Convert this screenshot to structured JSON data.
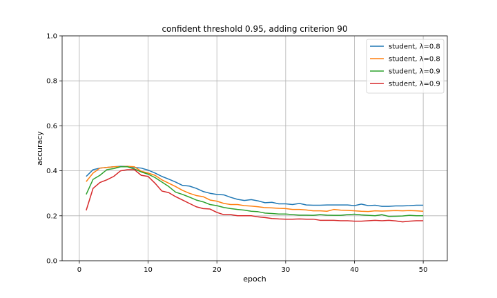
{
  "chart_data": {
    "type": "line",
    "title": "confident threshold 0.95, adding criterion 90",
    "xlabel": "epoch",
    "ylabel": "accuracy",
    "xlim": [
      -2.5,
      53.5
    ],
    "ylim": [
      0.0,
      1.0
    ],
    "x_ticks": [
      0,
      10,
      20,
      30,
      40,
      50
    ],
    "y_ticks": [
      0.0,
      0.2,
      0.4,
      0.6,
      0.8,
      1.0
    ],
    "x_tick_labels": [
      "0",
      "10",
      "20",
      "30",
      "40",
      "50"
    ],
    "y_tick_labels": [
      "0.0",
      "0.2",
      "0.4",
      "0.6",
      "0.8",
      "1.0"
    ],
    "grid": true,
    "legend_position": "top-right",
    "x": [
      1,
      2,
      3,
      4,
      5,
      6,
      7,
      8,
      9,
      10,
      11,
      12,
      13,
      14,
      15,
      16,
      17,
      18,
      19,
      20,
      21,
      22,
      23,
      24,
      25,
      26,
      27,
      28,
      29,
      30,
      31,
      32,
      33,
      34,
      35,
      36,
      37,
      38,
      39,
      40,
      41,
      42,
      43,
      44,
      45,
      46,
      47,
      48,
      49,
      50
    ],
    "series": [
      {
        "name": "student, λ=0.8",
        "color": "#1f77b4",
        "values": [
          0.375,
          0.405,
          0.412,
          0.415,
          0.418,
          0.42,
          0.42,
          0.415,
          0.412,
          0.403,
          0.39,
          0.375,
          0.363,
          0.35,
          0.335,
          0.332,
          0.322,
          0.308,
          0.3,
          0.295,
          0.293,
          0.282,
          0.273,
          0.268,
          0.272,
          0.266,
          0.258,
          0.26,
          0.253,
          0.253,
          0.25,
          0.255,
          0.248,
          0.247,
          0.247,
          0.248,
          0.248,
          0.248,
          0.248,
          0.245,
          0.252,
          0.245,
          0.247,
          0.242,
          0.242,
          0.244,
          0.244,
          0.245,
          0.247,
          0.247
        ]
      },
      {
        "name": "student, λ=0.8",
        "color": "#ff7f0e",
        "values": [
          0.352,
          0.39,
          0.412,
          0.415,
          0.418,
          0.418,
          0.42,
          0.418,
          0.398,
          0.39,
          0.38,
          0.36,
          0.345,
          0.33,
          0.313,
          0.3,
          0.29,
          0.285,
          0.27,
          0.265,
          0.255,
          0.25,
          0.25,
          0.245,
          0.243,
          0.24,
          0.236,
          0.235,
          0.233,
          0.232,
          0.228,
          0.228,
          0.226,
          0.222,
          0.222,
          0.22,
          0.228,
          0.225,
          0.224,
          0.222,
          0.22,
          0.219,
          0.222,
          0.221,
          0.222,
          0.223,
          0.222,
          0.223,
          0.222,
          0.22
        ]
      },
      {
        "name": "student, λ=0.9",
        "color": "#2ca02c",
        "values": [
          0.295,
          0.362,
          0.38,
          0.405,
          0.41,
          0.418,
          0.418,
          0.408,
          0.395,
          0.385,
          0.37,
          0.35,
          0.33,
          0.305,
          0.295,
          0.283,
          0.27,
          0.262,
          0.25,
          0.245,
          0.237,
          0.232,
          0.228,
          0.225,
          0.22,
          0.218,
          0.212,
          0.21,
          0.208,
          0.208,
          0.205,
          0.203,
          0.203,
          0.202,
          0.205,
          0.203,
          0.202,
          0.202,
          0.205,
          0.207,
          0.204,
          0.202,
          0.2,
          0.205,
          0.197,
          0.198,
          0.199,
          0.202,
          0.2,
          0.2
        ]
      },
      {
        "name": "student, λ=0.9",
        "color": "#d62728",
        "values": [
          0.224,
          0.322,
          0.348,
          0.36,
          0.375,
          0.4,
          0.405,
          0.405,
          0.38,
          0.375,
          0.345,
          0.31,
          0.303,
          0.285,
          0.27,
          0.255,
          0.24,
          0.232,
          0.23,
          0.215,
          0.205,
          0.205,
          0.2,
          0.2,
          0.2,
          0.195,
          0.192,
          0.188,
          0.186,
          0.185,
          0.185,
          0.186,
          0.185,
          0.185,
          0.18,
          0.18,
          0.18,
          0.178,
          0.178,
          0.176,
          0.176,
          0.178,
          0.18,
          0.178,
          0.18,
          0.177,
          0.173,
          0.176,
          0.178,
          0.178
        ]
      }
    ]
  }
}
